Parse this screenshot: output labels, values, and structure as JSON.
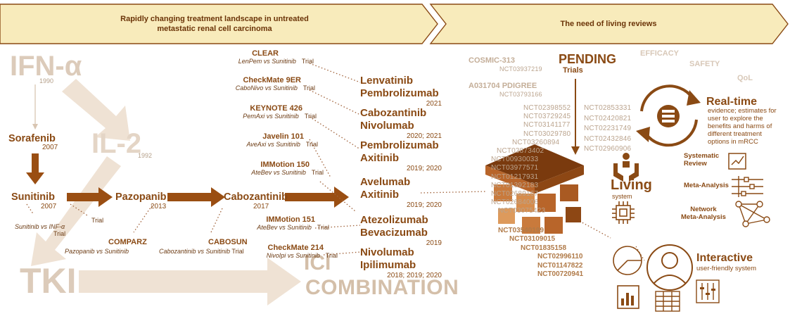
{
  "banner": {
    "left_line1": "Rapidly changing treatment landscape in untreated",
    "left_line2": "metastatic renal cell carcinoma",
    "right": "The need of living reviews"
  },
  "timeline": {
    "ifn": "IFN-α",
    "ifn_year": "1990",
    "il2": "IL-2",
    "il2_year": "1992",
    "tki": "TKI",
    "ici": "ICI",
    "combination": "COMBINATION",
    "sorafenib": "Sorafenib",
    "sorafenib_year": "2007",
    "sunitinib": "Sunitinib",
    "sunitinib_year": "2007",
    "sun_trial_line1": "Sunitinib vs INF-α",
    "sun_trial_line2": "Trial",
    "pazopanib": "Pazopanib",
    "pazopanib_year": "2013",
    "paz_trial": "Trial",
    "comparz": "COMPARZ",
    "comparz_sub": "Pazopanib vs Sunitinib",
    "cabozantinib": "Cabozantinib",
    "cabozantinib_year": "2017",
    "cabosun": "CABOSUN",
    "cabosun_sub": "Cabozantinib vs Sunitinib",
    "cabosun_trial": "Trial"
  },
  "trials": [
    {
      "name": "CLEAR",
      "sub": "LenPem vs Sunitinib",
      "tag": "Trial"
    },
    {
      "name": "CheckMate 9ER",
      "sub": "CaboNivo vs Sunitinib",
      "tag": "Trial"
    },
    {
      "name": "KEYNOTE 426",
      "sub": "PemAxi vs Sunitinib",
      "tag": "Trial"
    },
    {
      "name": "Javelin 101",
      "sub": "AveAxi vs Sunitinib",
      "tag": "Trial"
    },
    {
      "name": "IMMotion 150",
      "sub": "AteBev vs Sunitinib",
      "tag": "Trial"
    },
    {
      "name": "IMMotion 151",
      "sub": "AteBev vs Sunitinib",
      "tag": "Trial"
    },
    {
      "name": "CheckMate 214",
      "sub": "NivoIpi vs Sunitinib",
      "tag": "Trial"
    }
  ],
  "combos": [
    {
      "l1": "Lenvatinib",
      "l2": "Pembrolizumab",
      "year": "2021"
    },
    {
      "l1": "Cabozantinib",
      "l2": "Nivolumab",
      "year": "2020; 2021"
    },
    {
      "l1": "Pembrolizumab",
      "l2": "Axitinib",
      "year": "2019; 2020"
    },
    {
      "l1": "Avelumab",
      "l2": "Axitinib",
      "year": "2019; 2020"
    },
    {
      "l1": "Atezolizumab",
      "l2": "Bevacizumab",
      "year": "2019"
    },
    {
      "l1": "Nivolumab",
      "l2": "Ipilimumab",
      "year": "2018; 2019; 2020"
    }
  ],
  "pending": {
    "title": "PENDING",
    "sub": "Trials",
    "cosmic": "COSMIC-313",
    "cosmic_nct": "NCT03937219",
    "a031704": "A031704 PDIGREE",
    "a031704_nct": "NCT03793166",
    "efficacy": "EFFICACY",
    "safety": "SAFETY",
    "qol": "QoL",
    "left_ncts": [
      "NCT02398552",
      "NCT03729245",
      "NCT03141177",
      "NCT03029780",
      "NCT03260894",
      "NCT03873402",
      "NCT00930033",
      "NCT03977571",
      "NCT01217931",
      "NCT01392183",
      "NCT02689167",
      "NCT02684006",
      "NCT03075423"
    ],
    "right_ncts": [
      "NCT02853331",
      "NCT02420821",
      "NCT02231749",
      "NCT02432846",
      "NCT02960906"
    ],
    "bold_ncts": [
      "NCT03540199",
      "NCT03109015",
      "NCT01835158",
      "NCT02996110",
      "NCT01147822",
      "NCT00720941"
    ]
  },
  "living": {
    "title": "Living",
    "sub": "system",
    "realtime_title": "Real-time",
    "realtime_lines": [
      "evidence; estimates for",
      "user to explore the",
      "benefits and harms of",
      "different treatment",
      "options in mRCC"
    ],
    "sr": [
      "Systematic",
      "Review"
    ],
    "ma": "Meta-Analysis",
    "nma": [
      "Network",
      "Meta-Analysis"
    ],
    "interactive_title": "Interactive",
    "interactive_sub": "user-friendly system"
  },
  "colors": {
    "dark": "#8a4a14",
    "arrow": "#9a4e12",
    "light": "#e6d8c8",
    "banner": "#f7e9b7"
  }
}
